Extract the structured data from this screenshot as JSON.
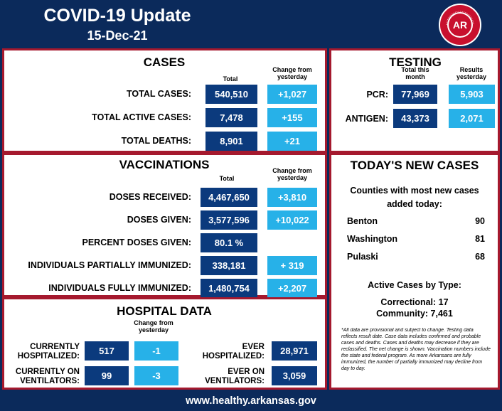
{
  "header": {
    "title": "COVID-19 Update",
    "date": "15-Dec-21",
    "seal_text": "ARKANSAS DEPARTMENT OF HEALTH",
    "seal_logo": "AR"
  },
  "cases": {
    "title": "CASES",
    "col_total": "Total",
    "col_change": "Change from yesterday",
    "rows": [
      {
        "label": "TOTAL CASES:",
        "total": "540,510",
        "change": "+1,027"
      },
      {
        "label": "TOTAL ACTIVE CASES:",
        "total": "7,478",
        "change": "+155"
      },
      {
        "label": "TOTAL DEATHS:",
        "total": "8,901",
        "change": "+21"
      }
    ]
  },
  "testing": {
    "title": "TESTING",
    "col_month": "Total this month",
    "col_yesterday": "Results yesterday",
    "rows": [
      {
        "label": "PCR:",
        "month": "77,969",
        "yesterday": "5,903"
      },
      {
        "label": "ANTIGEN:",
        "month": "43,373",
        "yesterday": "2,071"
      }
    ]
  },
  "vaccinations": {
    "title": "VACCINATIONS",
    "col_total": "Total",
    "col_change": "Change from yesterday",
    "rows": [
      {
        "label": "DOSES RECEIVED:",
        "total": "4,467,650",
        "change": "+3,810"
      },
      {
        "label": "DOSES GIVEN:",
        "total": "3,577,596",
        "change": "+10,022"
      },
      {
        "label": "PERCENT DOSES GIVEN:",
        "total": "80.1 %",
        "change": ""
      },
      {
        "label": "INDIVIDUALS PARTIALLY IMMUNIZED:",
        "total": "338,181",
        "change": "+ 319"
      },
      {
        "label": "INDIVIDUALS FULLY IMMUNIZED:",
        "total": "1,480,754",
        "change": "+2,207"
      }
    ]
  },
  "hospital": {
    "title": "HOSPITAL DATA",
    "col_change": "Change from yesterday",
    "hospitalized": {
      "label": "CURRENTLY HOSPITALIZED:",
      "total": "517",
      "change": "-1"
    },
    "ventilators": {
      "label": "CURRENTLY ON VENTILATORS:",
      "total": "99",
      "change": "-3"
    },
    "ever_hospitalized": {
      "label": "EVER HOSPITALIZED:",
      "total": "28,971"
    },
    "ever_ventilators": {
      "label": "EVER ON VENTILATORS:",
      "total": "3,059"
    }
  },
  "new_cases": {
    "title": "TODAY'S NEW CASES",
    "subtitle": "Counties with most new cases added today:",
    "counties": [
      {
        "name": "Benton",
        "count": "90"
      },
      {
        "name": "Washington",
        "count": "81"
      },
      {
        "name": "Pulaski",
        "count": "68"
      }
    ],
    "active_title": "Active Cases by Type:",
    "correctional": "Correctional: 17",
    "community": "Community: 7,461",
    "footnote": "*All data are provisional and subject to change. Testing data reflects result date. Case data includes confirmed and probable cases and deaths. Cases and deaths may decrease if they are reclassified. The net change is shown. Vaccination numbers include the state and federal program. As more Arkansans are fully immunized, the number of partially immunized may decline from day to day."
  },
  "footer": {
    "url": "www.healthy.arkansas.gov"
  }
}
